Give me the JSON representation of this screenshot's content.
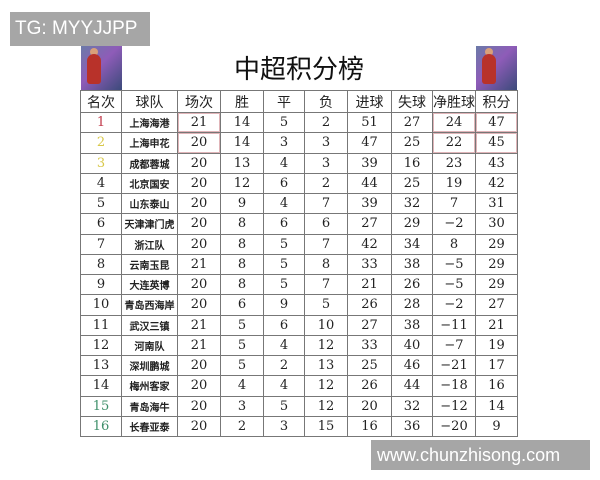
{
  "overlay_text": "TG: MYYJJPP",
  "watermark": "www.chunzhisong.com",
  "title": "中超积分榜",
  "colors": {
    "rank_top1": "#c0394a",
    "rank_top2_3": "#d8c84a",
    "rank_bottom": "#3e8f6a"
  },
  "headers": [
    "名次",
    "球队",
    "场次",
    "胜",
    "平",
    "负",
    "进球",
    "失球",
    "净胜球",
    "积分"
  ],
  "rows": [
    [
      "1",
      "上海海港",
      "21",
      "14",
      "5",
      "2",
      "51",
      "27",
      "24",
      "47"
    ],
    [
      "2",
      "上海申花",
      "20",
      "14",
      "3",
      "3",
      "47",
      "25",
      "22",
      "45"
    ],
    [
      "3",
      "成都蓉城",
      "20",
      "13",
      "4",
      "3",
      "39",
      "16",
      "23",
      "43"
    ],
    [
      "4",
      "北京国安",
      "20",
      "12",
      "6",
      "2",
      "44",
      "25",
      "19",
      "42"
    ],
    [
      "5",
      "山东泰山",
      "20",
      "9",
      "4",
      "7",
      "39",
      "32",
      "7",
      "31"
    ],
    [
      "6",
      "天津津门虎",
      "20",
      "8",
      "6",
      "6",
      "27",
      "29",
      "−2",
      "30"
    ],
    [
      "7",
      "浙江队",
      "20",
      "8",
      "5",
      "7",
      "42",
      "34",
      "8",
      "29"
    ],
    [
      "8",
      "云南玉昆",
      "21",
      "8",
      "5",
      "8",
      "33",
      "38",
      "−5",
      "29"
    ],
    [
      "9",
      "大连英博",
      "20",
      "8",
      "5",
      "7",
      "21",
      "26",
      "−5",
      "29"
    ],
    [
      "10",
      "青岛西海岸",
      "20",
      "6",
      "9",
      "5",
      "26",
      "28",
      "−2",
      "27"
    ],
    [
      "11",
      "武汉三镇",
      "21",
      "5",
      "6",
      "10",
      "27",
      "38",
      "−11",
      "21"
    ],
    [
      "12",
      "河南队",
      "21",
      "5",
      "4",
      "12",
      "33",
      "40",
      "−7",
      "19"
    ],
    [
      "13",
      "深圳鹏城",
      "20",
      "5",
      "2",
      "13",
      "25",
      "46",
      "−21",
      "17"
    ],
    [
      "14",
      "梅州客家",
      "20",
      "4",
      "4",
      "12",
      "26",
      "44",
      "−18",
      "16"
    ],
    [
      "15",
      "青岛海牛",
      "20",
      "3",
      "5",
      "12",
      "20",
      "32",
      "−12",
      "14"
    ],
    [
      "16",
      "长春亚泰",
      "20",
      "2",
      "3",
      "15",
      "16",
      "36",
      "−20",
      "9"
    ]
  ]
}
